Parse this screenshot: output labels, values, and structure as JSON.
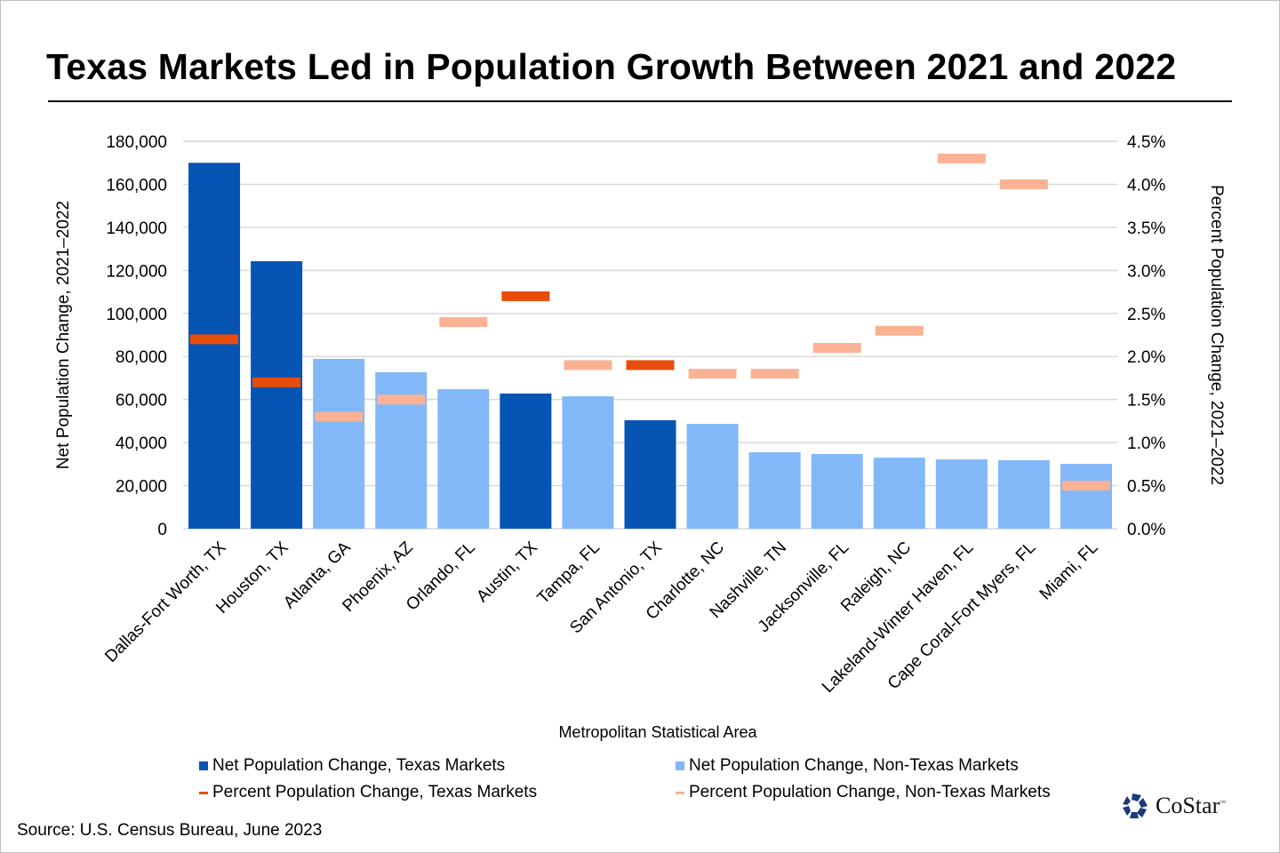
{
  "title": "Texas Markets Led in Population Growth Between 2021 and 2022",
  "source": "Source: U.S. Census Bureau, June 2023",
  "logo": {
    "text": "CoStar",
    "tm": "™"
  },
  "colors": {
    "texas_bar": "#0654B4",
    "non_texas_bar": "#82B8F8",
    "texas_pct": "#E84C0A",
    "non_texas_pct": "#FBB294",
    "grid": "#d9d9d9"
  },
  "chart_data": {
    "type": "bar",
    "title": "Texas Markets Led in Population Growth Between 2021 and 2022",
    "xlabel": "Metropolitan Statistical Area",
    "ylabel": "Net Population Change, 2021–2022",
    "y2label": "Percent Population Change, 2021–2022",
    "ylim": [
      0,
      180000
    ],
    "y2lim": [
      0,
      4.5
    ],
    "yticks": [
      "0",
      "20,000",
      "40,000",
      "60,000",
      "80,000",
      "100,000",
      "120,000",
      "140,000",
      "160,000",
      "180,000"
    ],
    "y2ticks": [
      "0.0%",
      "0.5%",
      "1.0%",
      "1.5%",
      "2.0%",
      "2.5%",
      "3.0%",
      "3.5%",
      "4.0%",
      "4.5%"
    ],
    "grid": true,
    "legend_position": "bottom",
    "categories": [
      "Dallas-Fort Worth, TX",
      "Houston, TX",
      "Atlanta, GA",
      "Phoenix, AZ",
      "Orlando, FL",
      "Austin, TX",
      "Tampa, FL",
      "San Antonio, TX",
      "Charlotte, NC",
      "Nashville, TN",
      "Jacksonville, FL",
      "Raleigh, NC",
      "Lakeland-Winter Haven, FL",
      "Cape Coral-Fort Myers, FL",
      "Miami, FL"
    ],
    "is_texas": [
      true,
      true,
      false,
      false,
      false,
      true,
      false,
      true,
      false,
      false,
      false,
      false,
      false,
      false,
      false
    ],
    "series": [
      {
        "name": "Net Population Change, Texas Markets / Non-Texas Markets",
        "axis": "left",
        "values": [
          170000,
          124300,
          78900,
          72700,
          64800,
          62800,
          61500,
          50400,
          48700,
          35500,
          34700,
          33000,
          32200,
          31800,
          30100
        ]
      },
      {
        "name": "Percent Population Change, Texas Markets / Non-Texas Markets",
        "axis": "right",
        "values": [
          2.2,
          1.7,
          1.3,
          1.5,
          2.4,
          2.7,
          1.9,
          1.9,
          1.8,
          1.8,
          2.1,
          2.3,
          4.3,
          4.0,
          0.5
        ]
      }
    ],
    "legend": [
      {
        "label": "Net Population Change, Texas Markets",
        "kind": "square",
        "color": "#0654B4"
      },
      {
        "label": "Net Population Change, Non-Texas Markets",
        "kind": "square",
        "color": "#82B8F8"
      },
      {
        "label": "Percent Population Change, Texas Markets",
        "kind": "line",
        "color": "#E84C0A"
      },
      {
        "label": "Percent Population Change, Non-Texas Markets",
        "kind": "line",
        "color": "#FBB294"
      }
    ]
  }
}
